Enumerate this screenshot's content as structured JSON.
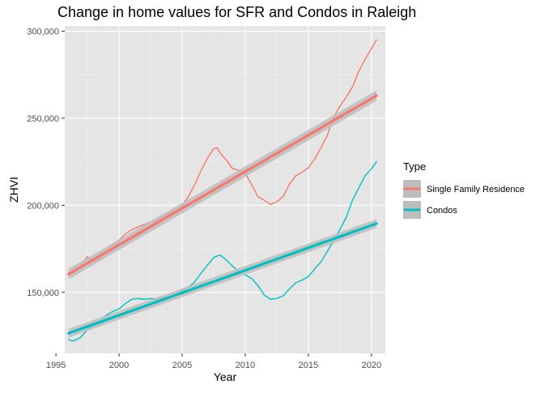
{
  "chart_data": {
    "type": "line",
    "title": "Change in home values for SFR and Condos in Raleigh",
    "xlabel": "Year",
    "ylabel": "ZHVI",
    "xlim": [
      1995.7,
      2021.1
    ],
    "ylim": [
      115000,
      303000
    ],
    "x_ticks": [
      1995,
      2000,
      2005,
      2010,
      2015,
      2020
    ],
    "x_tick_labels": [
      "1995",
      "2000",
      "2005",
      "2010",
      "2015",
      "2020"
    ],
    "y_ticks": [
      150000,
      200000,
      250000,
      300000
    ],
    "y_tick_labels": [
      "150,000",
      "200,000",
      "250,000",
      "300,000"
    ],
    "grid": true,
    "legend": {
      "title": "Type",
      "position": "right",
      "entries": [
        "Single Family Residence",
        "Condos"
      ]
    },
    "colors": {
      "panel_background": "#e5e5e5",
      "grid_major": "#ffffff",
      "grid_minor": "#f2f2f2",
      "ribbon": "#bdbdbd",
      "Single Family Residence": "#f8766d",
      "Condos": "#00bfc4"
    },
    "series": [
      {
        "name": "Single Family Residence",
        "x": [
          1996.0,
          1996.5,
          1997.0,
          1997.5,
          1997.8,
          1998.0,
          1998.5,
          1999.0,
          1999.5,
          2000.0,
          2000.5,
          2001.0,
          2001.5,
          2002.0,
          2002.5,
          2003.0,
          2003.5,
          2004.0,
          2004.5,
          2005.0,
          2005.5,
          2006.0,
          2006.5,
          2007.0,
          2007.5,
          2007.8,
          2008.0,
          2008.5,
          2009.0,
          2009.5,
          2010.0,
          2010.5,
          2011.0,
          2011.5,
          2012.0,
          2012.5,
          2013.0,
          2013.5,
          2014.0,
          2014.5,
          2015.0,
          2015.5,
          2016.0,
          2016.5,
          2017.0,
          2017.5,
          2018.0,
          2018.5,
          2019.0,
          2019.5,
          2020.0,
          2020.4
        ],
        "values": [
          160000,
          161500,
          166000,
          170500,
          168000,
          167500,
          170000,
          174000,
          177500,
          180000,
          183500,
          186000,
          187500,
          189000,
          190500,
          192000,
          193500,
          195500,
          197000,
          200000,
          205000,
          212000,
          220000,
          227000,
          232500,
          233000,
          230000,
          226000,
          221000,
          220000,
          218500,
          212000,
          205000,
          203000,
          200500,
          202000,
          205000,
          212000,
          217000,
          219000,
          221500,
          226500,
          233000,
          240000,
          250500,
          257000,
          262000,
          268000,
          277000,
          284000,
          290000,
          295000
        ]
      },
      {
        "name": "Condos",
        "x": [
          1996.0,
          1996.3,
          1996.7,
          1997.0,
          1997.5,
          1998.0,
          1998.5,
          1999.0,
          1999.5,
          2000.0,
          2000.5,
          2001.0,
          2001.5,
          2002.0,
          2002.5,
          2003.0,
          2003.5,
          2004.0,
          2004.5,
          2005.0,
          2005.5,
          2006.0,
          2006.5,
          2007.0,
          2007.5,
          2008.0,
          2008.5,
          2009.0,
          2009.5,
          2010.0,
          2010.5,
          2011.0,
          2011.5,
          2012.0,
          2012.5,
          2013.0,
          2013.5,
          2014.0,
          2014.5,
          2015.0,
          2015.5,
          2016.0,
          2016.5,
          2017.0,
          2017.5,
          2018.0,
          2018.5,
          2019.0,
          2019.5,
          2020.0,
          2020.4
        ],
        "values": [
          123000,
          122000,
          123000,
          124500,
          128500,
          131000,
          133500,
          137000,
          139000,
          140500,
          143500,
          146000,
          146500,
          146000,
          146500,
          146000,
          147000,
          147500,
          148500,
          151000,
          153000,
          156000,
          161000,
          165500,
          170000,
          171500,
          168500,
          165000,
          162000,
          160000,
          158000,
          154000,
          148500,
          146000,
          146500,
          148000,
          152000,
          155500,
          157000,
          159000,
          163500,
          167500,
          173500,
          179500,
          186000,
          193000,
          203000,
          210000,
          217000,
          221000,
          225000
        ]
      }
    ],
    "trend_lines": [
      {
        "name": "Single Family Residence",
        "x": [
          1996.0,
          2020.4
        ],
        "values": [
          160500,
          263000
        ],
        "band": 3000
      },
      {
        "name": "Condos",
        "x": [
          1996.0,
          2020.4
        ],
        "values": [
          126500,
          189500
        ],
        "band": 2500
      }
    ]
  }
}
